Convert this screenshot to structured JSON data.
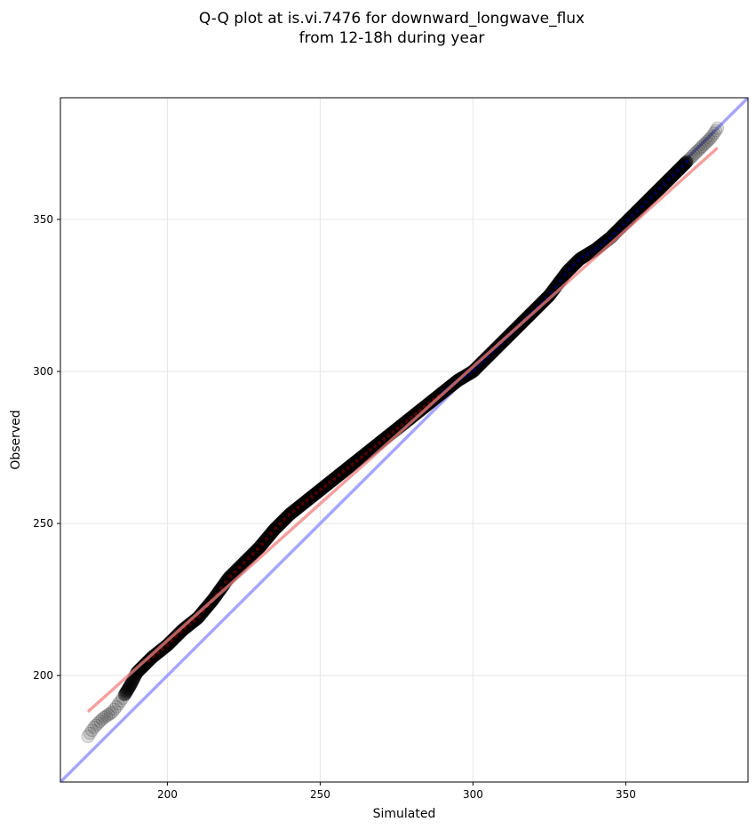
{
  "chart_data": {
    "type": "scatter",
    "title_lines": [
      "Q-Q plot at is.vi.7476 for downward_longwave_flux",
      "from 12-18h during year"
    ],
    "xlabel": "Simulated",
    "ylabel": "Observed",
    "xlim": [
      165,
      390
    ],
    "ylim": [
      165,
      390
    ],
    "xticks": [
      200,
      250,
      300,
      350
    ],
    "yticks": [
      200,
      250,
      300,
      350
    ],
    "grid": true,
    "x_range": [
      174,
      380
    ],
    "quantile_knots": [
      [
        174,
        180
      ],
      [
        176,
        183
      ],
      [
        179,
        186
      ],
      [
        182,
        188
      ],
      [
        185,
        192
      ],
      [
        188,
        197
      ],
      [
        190,
        201
      ],
      [
        195,
        206
      ],
      [
        200,
        210
      ],
      [
        205,
        215
      ],
      [
        210,
        219
      ],
      [
        215,
        225
      ],
      [
        220,
        232
      ],
      [
        225,
        237
      ],
      [
        230,
        242
      ],
      [
        235,
        248
      ],
      [
        240,
        253
      ],
      [
        245,
        257
      ],
      [
        250,
        261
      ],
      [
        255,
        265
      ],
      [
        260,
        269
      ],
      [
        265,
        273
      ],
      [
        270,
        277
      ],
      [
        275,
        281
      ],
      [
        280,
        285
      ],
      [
        285,
        289
      ],
      [
        290,
        293
      ],
      [
        295,
        297
      ],
      [
        300,
        300
      ],
      [
        305,
        305
      ],
      [
        310,
        310
      ],
      [
        315,
        315
      ],
      [
        320,
        320
      ],
      [
        325,
        325
      ],
      [
        328,
        329
      ],
      [
        331,
        333
      ],
      [
        335,
        337
      ],
      [
        340,
        340
      ],
      [
        345,
        344
      ],
      [
        350,
        349
      ],
      [
        355,
        354
      ],
      [
        360,
        359
      ],
      [
        365,
        364
      ],
      [
        370,
        369
      ],
      [
        373,
        372
      ],
      [
        376,
        375
      ],
      [
        378,
        377
      ],
      [
        380,
        380
      ]
    ],
    "regression_line": {
      "slope": 0.9,
      "intercept": 31.5,
      "x_range": [
        174,
        380
      ],
      "color": "#f08080"
    },
    "identity_line": {
      "x_range": [
        165,
        390
      ],
      "color": "#8888ff"
    },
    "point_color": "#000000",
    "highlight_colors": {
      "low": "#8b0000",
      "high": "#00008b"
    }
  }
}
